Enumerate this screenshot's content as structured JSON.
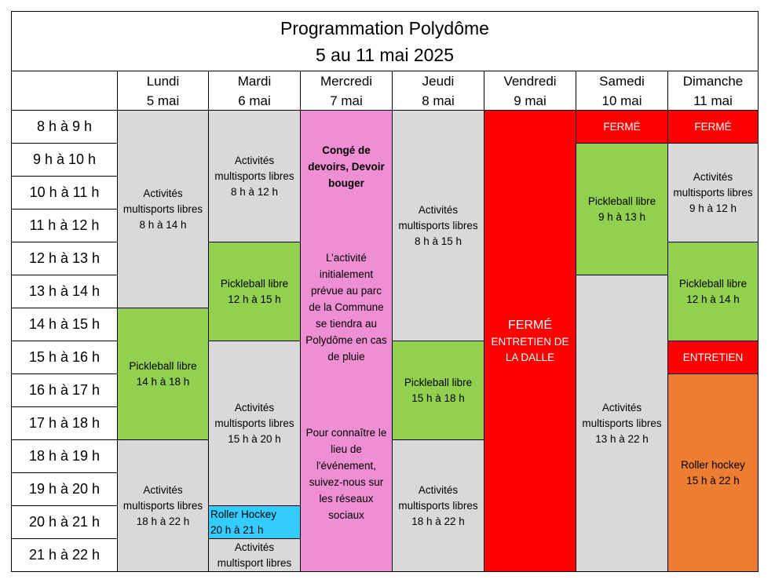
{
  "title": {
    "line1": "Programmation Polydôme",
    "line2": "5 au 11 mai 2025"
  },
  "days": [
    {
      "name": "Lundi",
      "date": "5 mai"
    },
    {
      "name": "Mardi",
      "date": "6 mai"
    },
    {
      "name": "Mercredi",
      "date": "7 mai"
    },
    {
      "name": "Jeudi",
      "date": "8 mai"
    },
    {
      "name": "Vendredi",
      "date": "9 mai"
    },
    {
      "name": "Samedi",
      "date": "10 mai"
    },
    {
      "name": "Dimanche",
      "date": "11 mai"
    }
  ],
  "times": [
    "8 h à 9 h",
    "9 h à 10 h",
    "10 h à 11 h",
    "11 h à 12 h",
    "12 h à 13 h",
    "13 h à 14 h",
    "14 h à 15 h",
    "15 h à 16 h",
    "16 h à 17 h",
    "17 h à 18 h",
    "18 h à 19 h",
    "19 h à 20 h",
    "20 h à 21 h",
    "21 h à 22 h"
  ],
  "lundi": {
    "b1": [
      "Activités",
      "multisports libres",
      "8 h à 14 h"
    ],
    "b2": [
      "Pickleball libre",
      "14 h à 18 h"
    ],
    "b3": [
      "Activités",
      "multisports libres",
      "18 h à 22 h"
    ]
  },
  "mardi": {
    "b1": [
      "Activités",
      "multisports libres",
      "8 h à 12 h"
    ],
    "b2": [
      "Pickleball libre",
      "12 h à 15 h"
    ],
    "b3": [
      "Activités",
      "multisports libres",
      "15 h à 20 h"
    ],
    "b4": [
      "Roller Hockey",
      "20 h à 21 h"
    ],
    "b5": [
      "Activités",
      "multisport libres"
    ]
  },
  "mercredi": {
    "t1": [
      "Congé de",
      "devoirs, Devoir",
      "bouger"
    ],
    "t2": [
      "L’activité",
      "initialement",
      "prévue au parc",
      "de la Commune",
      "se tiendra au",
      "Polydôme en cas",
      "de pluie"
    ],
    "t3": [
      "Pour connaître le",
      "lieu de",
      "l'événement,",
      "suivez-nous sur",
      "les réseaux",
      "sociaux"
    ]
  },
  "jeudi": {
    "b1": [
      "Activités",
      "multisports libres",
      "8 h à 15 h"
    ],
    "b2": [
      "Pickleball libre",
      "15 h à 18 h"
    ],
    "b3": [
      "Activités",
      "multisports libres",
      "18 h à 22 h"
    ]
  },
  "vendredi": {
    "b1": [
      "FERMÉ",
      "ENTRETIEN DE",
      "LA DALLE"
    ]
  },
  "samedi": {
    "b0": "FERMÉ",
    "b1": [
      "Pickleball libre",
      "9 h à 13 h"
    ],
    "b2": [
      "Activités",
      "multisports libres",
      "13 h à 22 h"
    ]
  },
  "dimanche": {
    "b0": "FERMÉ",
    "b1": [
      "Activités",
      "multisports libres",
      "9 h à 12 h"
    ],
    "b2": [
      "Pickleball libre",
      "12 h à 14 h"
    ],
    "b3": "ENTRETIEN",
    "b4": [
      "Roller hockey",
      "15 h à 22 h"
    ]
  },
  "colors": {
    "grey": "#d9d9d9",
    "green": "#92d050",
    "pink": "#ee8fd3",
    "red": "#ff0000",
    "orange": "#ed7d31",
    "blue": "#33ccff"
  }
}
